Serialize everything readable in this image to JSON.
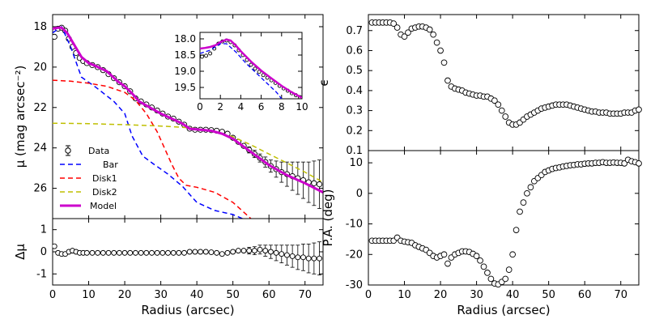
{
  "chart_data": [
    {
      "id": "profile",
      "type": "line",
      "ylabel": "μ (mag arcsec⁻²)",
      "xlim": [
        0,
        75
      ],
      "ylim": [
        27.5,
        17.4
      ],
      "yinverted": true,
      "yticks": [
        18,
        20,
        22,
        24,
        26
      ],
      "legend": {
        "placement": "lower-left"
      },
      "series": [
        {
          "name": "Data",
          "kind": "points-errorbars",
          "color": "#000000",
          "x": [
            0.5,
            1.5,
            2.5,
            3.5,
            4.5,
            5.5,
            6.5,
            7.5,
            8.5,
            9.5,
            11,
            12.5,
            14,
            15.5,
            17,
            18.5,
            20,
            21.5,
            23,
            24.5,
            26,
            27.5,
            29,
            30.5,
            32,
            33.5,
            35,
            36.5,
            38,
            39.5,
            41,
            42.5,
            44,
            45.5,
            47,
            48.5,
            50,
            51.5,
            53,
            54.5,
            56,
            57.5,
            59,
            60.5,
            62,
            63.5,
            65,
            66.5,
            68,
            69.5,
            71,
            72.5,
            74
          ],
          "y": [
            18.5,
            18.1,
            18.05,
            18.2,
            18.6,
            19.0,
            19.3,
            19.55,
            19.7,
            19.8,
            19.9,
            20.0,
            20.15,
            20.35,
            20.55,
            20.75,
            20.95,
            21.2,
            21.55,
            21.7,
            21.85,
            22.0,
            22.15,
            22.3,
            22.45,
            22.55,
            22.7,
            22.85,
            23.05,
            23.1,
            23.1,
            23.1,
            23.12,
            23.15,
            23.2,
            23.3,
            23.5,
            23.7,
            23.9,
            24.1,
            24.3,
            24.5,
            24.7,
            24.9,
            25.05,
            25.2,
            25.3,
            25.4,
            25.5,
            25.6,
            25.7,
            25.75,
            25.8
          ],
          "err": [
            0.08,
            0.08,
            0.08,
            0.08,
            0.08,
            0.08,
            0.08,
            0.08,
            0.08,
            0.08,
            0.08,
            0.08,
            0.08,
            0.08,
            0.08,
            0.08,
            0.08,
            0.08,
            0.08,
            0.08,
            0.08,
            0.08,
            0.08,
            0.08,
            0.08,
            0.08,
            0.08,
            0.08,
            0.08,
            0.08,
            0.08,
            0.08,
            0.08,
            0.08,
            0.08,
            0.08,
            0.1,
            0.1,
            0.12,
            0.15,
            0.18,
            0.2,
            0.25,
            0.3,
            0.4,
            0.5,
            0.6,
            0.7,
            0.8,
            0.9,
            1.0,
            1.1,
            1.2
          ]
        },
        {
          "name": "Bar",
          "color": "#0000ff",
          "dash": "6,4",
          "x": [
            0,
            2.5,
            5,
            8,
            12,
            17,
            20,
            22,
            25,
            28,
            32,
            36,
            40,
            45,
            50,
            54
          ],
          "y": [
            18.3,
            18.0,
            19.0,
            20.5,
            21.0,
            21.7,
            22.3,
            23.4,
            24.4,
            24.8,
            25.3,
            25.9,
            26.7,
            27.1,
            27.3,
            27.6
          ]
        },
        {
          "name": "Disk1",
          "color": "#ff0000",
          "dash": "6,4",
          "x": [
            0,
            5,
            10,
            15,
            20,
            23,
            26,
            29,
            31,
            33,
            35,
            37,
            40,
            45,
            50,
            55
          ],
          "y": [
            20.65,
            20.7,
            20.8,
            20.95,
            21.25,
            21.65,
            22.3,
            23.2,
            24.0,
            24.8,
            25.5,
            25.85,
            25.95,
            26.2,
            26.7,
            27.5
          ]
        },
        {
          "name": "Disk2",
          "color": "#bfbf00",
          "dash": "6,4",
          "x": [
            0,
            10,
            20,
            30,
            36,
            40,
            45,
            50,
            55,
            60,
            65,
            70,
            75
          ],
          "y": [
            22.78,
            22.8,
            22.85,
            22.92,
            22.98,
            23.05,
            23.2,
            23.45,
            23.85,
            24.3,
            24.75,
            25.2,
            25.7
          ]
        },
        {
          "name": "Model",
          "color": "#cc00cc",
          "width": 3,
          "x": [
            0,
            1.5,
            2.5,
            4,
            6,
            8,
            10,
            12,
            15,
            18,
            20,
            22,
            24,
            27,
            30,
            33,
            36,
            38,
            41,
            44,
            47,
            50,
            55,
            60,
            65,
            70,
            75
          ],
          "y": [
            18.1,
            18.05,
            18.05,
            18.3,
            18.9,
            19.5,
            19.8,
            19.95,
            20.2,
            20.7,
            20.95,
            21.3,
            21.7,
            22.0,
            22.3,
            22.55,
            22.8,
            23.05,
            23.1,
            23.15,
            23.3,
            23.55,
            24.2,
            24.85,
            25.35,
            25.75,
            26.2
          ]
        }
      ]
    },
    {
      "id": "inset",
      "type": "line",
      "xlim": [
        0,
        10
      ],
      "ylim": [
        19.85,
        17.8
      ],
      "yinverted": true,
      "xticks": [
        0,
        2,
        4,
        6,
        8,
        10
      ],
      "yticks": [
        18.0,
        18.5,
        19.0,
        19.5
      ],
      "series": [
        {
          "name": "Data",
          "kind": "points-errorbars",
          "x": [
            0.2,
            0.6,
            1.0,
            1.4,
            1.8,
            2.2,
            2.6,
            3.0,
            3.4,
            3.8,
            4.2,
            4.6,
            5.0,
            5.4,
            5.8,
            6.2,
            6.6,
            7.0,
            7.4,
            7.8,
            8.2,
            8.6,
            9.0,
            9.4,
            9.8
          ],
          "y": [
            18.55,
            18.52,
            18.45,
            18.3,
            18.15,
            18.08,
            18.05,
            18.1,
            18.2,
            18.35,
            18.5,
            18.65,
            18.8,
            18.92,
            19.02,
            19.12,
            19.2,
            19.28,
            19.36,
            19.45,
            19.53,
            19.6,
            19.68,
            19.74,
            19.8
          ]
        },
        {
          "name": "Bar",
          "x": [
            0,
            1,
            2,
            2.6,
            3.5,
            4.5,
            5.5,
            6.5,
            7.5,
            8,
            8.5
          ],
          "y": [
            18.45,
            18.35,
            18.15,
            18.15,
            18.4,
            18.75,
            19.05,
            19.35,
            19.65,
            19.85,
            20.05
          ]
        },
        {
          "name": "Model",
          "x": [
            0,
            0.5,
            1,
            1.5,
            2,
            2.6,
            3,
            3.5,
            4,
            5,
            6,
            7,
            8,
            9,
            10
          ],
          "y": [
            18.3,
            18.28,
            18.25,
            18.2,
            18.1,
            18.02,
            18.05,
            18.2,
            18.38,
            18.7,
            18.98,
            19.22,
            19.45,
            19.65,
            19.82
          ]
        }
      ]
    },
    {
      "id": "residual",
      "type": "scatter",
      "ylabel": "Δμ",
      "xlabel": "Radius (arcsec)",
      "xlim": [
        0,
        75
      ],
      "ylim": [
        -1.5,
        1.5
      ],
      "xticks": [
        0,
        10,
        20,
        30,
        40,
        50,
        60,
        70
      ],
      "yticks": [
        -1,
        0,
        1
      ],
      "series": [
        {
          "name": "Residual",
          "x": [
            0.5,
            1.5,
            2.5,
            3.5,
            4.5,
            5.5,
            6.5,
            7.5,
            8.5,
            9.5,
            11,
            12.5,
            14,
            15.5,
            17,
            18.5,
            20,
            21.5,
            23,
            24.5,
            26,
            27.5,
            29,
            30.5,
            32,
            33.5,
            35,
            36.5,
            38,
            39.5,
            41,
            42.5,
            44,
            45.5,
            47,
            48.5,
            50,
            51.5,
            53,
            54.5,
            56,
            57.5,
            59,
            60.5,
            62,
            63.5,
            65,
            66.5,
            68,
            69.5,
            71,
            72.5,
            74
          ],
          "y": [
            0.25,
            -0.05,
            -0.1,
            -0.1,
            0.0,
            0.05,
            0.0,
            -0.05,
            -0.05,
            -0.05,
            -0.05,
            -0.05,
            -0.05,
            -0.05,
            -0.05,
            -0.05,
            -0.05,
            -0.05,
            -0.05,
            -0.05,
            -0.05,
            -0.05,
            -0.05,
            -0.05,
            -0.05,
            -0.05,
            -0.05,
            -0.05,
            0.0,
            0.0,
            0.0,
            0.0,
            -0.02,
            -0.05,
            -0.1,
            -0.05,
            0.0,
            0.05,
            0.05,
            0.05,
            0.05,
            0.1,
            0.05,
            0.0,
            -0.05,
            -0.1,
            -0.15,
            -0.2,
            -0.25,
            -0.25,
            -0.3,
            -0.3,
            -0.3
          ],
          "err": [
            0.08,
            0.08,
            0.08,
            0.08,
            0.08,
            0.08,
            0.08,
            0.08,
            0.08,
            0.08,
            0.08,
            0.08,
            0.08,
            0.08,
            0.08,
            0.08,
            0.08,
            0.08,
            0.08,
            0.08,
            0.08,
            0.08,
            0.08,
            0.08,
            0.08,
            0.08,
            0.08,
            0.08,
            0.08,
            0.08,
            0.08,
            0.08,
            0.08,
            0.08,
            0.08,
            0.08,
            0.1,
            0.1,
            0.12,
            0.15,
            0.18,
            0.2,
            0.25,
            0.3,
            0.35,
            0.4,
            0.45,
            0.5,
            0.55,
            0.6,
            0.65,
            0.7,
            0.75
          ]
        }
      ]
    },
    {
      "id": "ellipticity",
      "type": "scatter",
      "ylabel": "ϵ",
      "xlim": [
        0,
        75
      ],
      "ylim": [
        0.1,
        0.78
      ],
      "yticks": [
        0.1,
        0.2,
        0.3,
        0.4,
        0.5,
        0.6,
        0.7
      ],
      "series": [
        {
          "name": "Ellipticity",
          "x": [
            1,
            2,
            3,
            4,
            5,
            6,
            7,
            8,
            9,
            10,
            11,
            12,
            13,
            14,
            15,
            16,
            17,
            18,
            19,
            20,
            21,
            22,
            23,
            24,
            25,
            26,
            27,
            28,
            29,
            30,
            31,
            32,
            33,
            34,
            35,
            36,
            37,
            38,
            39,
            40,
            41,
            42,
            43,
            44,
            45,
            46,
            47,
            48,
            49,
            50,
            51,
            52,
            53,
            54,
            55,
            56,
            57,
            58,
            59,
            60,
            61,
            62,
            63,
            64,
            65,
            66,
            67,
            68,
            69,
            70,
            71,
            72,
            73,
            74,
            75
          ],
          "y": [
            0.74,
            0.74,
            0.74,
            0.74,
            0.74,
            0.74,
            0.735,
            0.715,
            0.68,
            0.67,
            0.69,
            0.71,
            0.715,
            0.72,
            0.72,
            0.715,
            0.705,
            0.68,
            0.64,
            0.6,
            0.54,
            0.45,
            0.42,
            0.41,
            0.405,
            0.4,
            0.39,
            0.385,
            0.38,
            0.375,
            0.375,
            0.37,
            0.37,
            0.36,
            0.35,
            0.33,
            0.3,
            0.27,
            0.24,
            0.23,
            0.23,
            0.24,
            0.255,
            0.27,
            0.28,
            0.29,
            0.3,
            0.31,
            0.315,
            0.32,
            0.325,
            0.33,
            0.33,
            0.33,
            0.33,
            0.325,
            0.32,
            0.315,
            0.31,
            0.305,
            0.3,
            0.295,
            0.295,
            0.29,
            0.29,
            0.29,
            0.285,
            0.285,
            0.285,
            0.285,
            0.29,
            0.29,
            0.29,
            0.3,
            0.305
          ]
        }
      ]
    },
    {
      "id": "position-angle",
      "type": "scatter",
      "ylabel": "P.A. (deg)",
      "xlabel": "Radius (arcsec)",
      "xlim": [
        0,
        75
      ],
      "ylim": [
        -30,
        14
      ],
      "xticks": [
        0,
        10,
        20,
        30,
        40,
        50,
        60,
        70
      ],
      "yticks": [
        -30,
        -20,
        -10,
        0,
        10
      ],
      "series": [
        {
          "name": "Position angle",
          "x": [
            1,
            2,
            3,
            4,
            5,
            6,
            7,
            8,
            9,
            10,
            11,
            12,
            13,
            14,
            15,
            16,
            17,
            18,
            19,
            20,
            21,
            22,
            23,
            24,
            25,
            26,
            27,
            28,
            29,
            30,
            31,
            32,
            33,
            34,
            35,
            36,
            37,
            38,
            39,
            40,
            41,
            42,
            43,
            44,
            45,
            46,
            47,
            48,
            49,
            50,
            51,
            52,
            53,
            54,
            55,
            56,
            57,
            58,
            59,
            60,
            61,
            62,
            63,
            64,
            65,
            66,
            67,
            68,
            69,
            70,
            71,
            72,
            73,
            74,
            75
          ],
          "y": [
            -15.5,
            -15.5,
            -15.5,
            -15.5,
            -15.5,
            -15.5,
            -15.5,
            -14.5,
            -15.5,
            -15.8,
            -16,
            -16.2,
            -17,
            -17.5,
            -18,
            -18.5,
            -19.5,
            -20.5,
            -21,
            -20.5,
            -20,
            -23,
            -21,
            -20,
            -19.5,
            -19,
            -19,
            -19.2,
            -19.8,
            -20.5,
            -22,
            -24,
            -26,
            -28,
            -29.5,
            -29.8,
            -29,
            -28,
            -25,
            -20,
            -12,
            -6,
            -3,
            0,
            2,
            4,
            5,
            6,
            7,
            7.5,
            8,
            8.3,
            8.5,
            8.8,
            9,
            9.2,
            9.3,
            9.5,
            9.5,
            9.7,
            9.8,
            9.8,
            10,
            10,
            10.2,
            10,
            10,
            10.1,
            10,
            10,
            9.8,
            11,
            10.5,
            10.2,
            9.8
          ]
        }
      ]
    }
  ]
}
